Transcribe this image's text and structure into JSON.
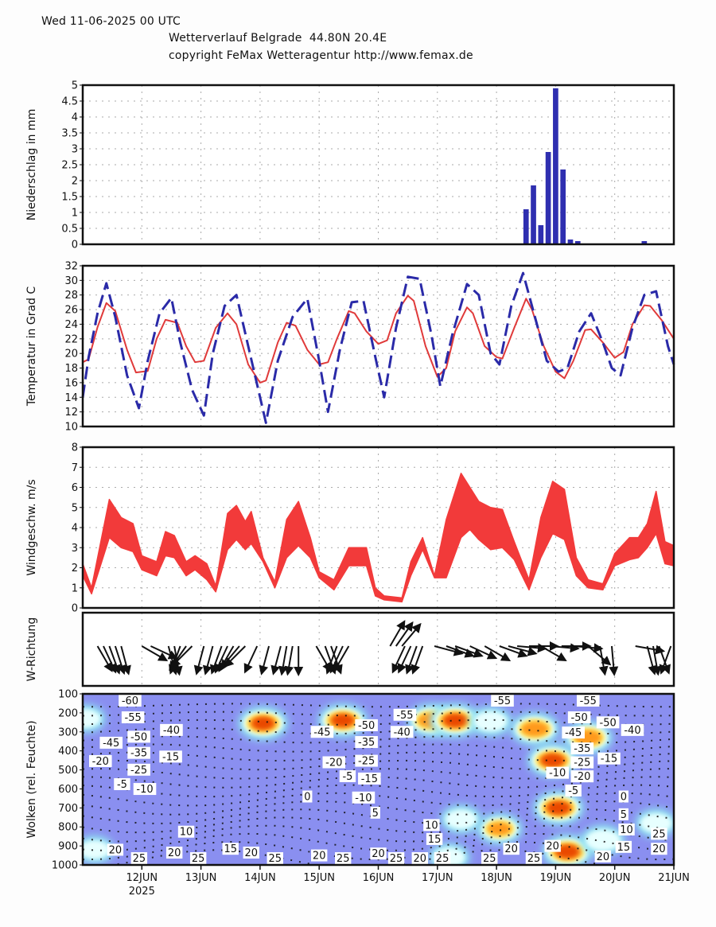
{
  "header": {
    "date_line": "Wed 11-06-2025 00 UTC",
    "title_line": "Wetterverlauf Belgrade  44.80N 20.4E",
    "copyright_line": "copyright FeMax Wetteragentur http://www.femax.de"
  },
  "x_axis": {
    "start_day": 11,
    "end_day": 21,
    "tick_labels": [
      "12JUN",
      "13JUN",
      "14JUN",
      "15JUN",
      "16JUN",
      "17JUN",
      "18JUN",
      "19JUN",
      "20JUN",
      "21JUN"
    ],
    "tick_days": [
      12,
      13,
      14,
      15,
      16,
      17,
      18,
      19,
      20,
      21
    ],
    "year_label": "2025"
  },
  "chart_data": [
    {
      "type": "bar",
      "name": "precipitation",
      "ylabel": "Niederschlag in mm",
      "ylim": [
        0,
        5
      ],
      "yticks": [
        "0",
        "0.5",
        "1",
        "1.5",
        "2",
        "2.5",
        "3",
        "3.5",
        "4",
        "4.5",
        "5"
      ],
      "grid": true,
      "color": "#2f2fb0",
      "x": [
        18.5,
        18.625,
        18.75,
        18.875,
        19.0,
        19.125,
        19.25,
        19.375,
        20.5
      ],
      "values": [
        1.1,
        1.85,
        0.6,
        2.9,
        4.9,
        2.35,
        0.15,
        0.1,
        0.1
      ]
    },
    {
      "type": "line",
      "name": "temperature",
      "ylabel": "Temperatur in Grad C",
      "ylim": [
        10,
        32
      ],
      "yticks": [
        "10",
        "12",
        "14",
        "16",
        "18",
        "20",
        "22",
        "24",
        "26",
        "28",
        "30",
        "32"
      ],
      "grid": true,
      "series": [
        {
          "name": "2m temperature",
          "style": "solid",
          "color": "#e03a3a",
          "x": [
            11.0,
            11.1,
            11.25,
            11.4,
            11.55,
            11.75,
            11.9,
            12.1,
            12.25,
            12.4,
            12.6,
            12.75,
            12.9,
            13.05,
            13.25,
            13.45,
            13.6,
            13.8,
            14.0,
            14.1,
            14.3,
            14.45,
            14.6,
            14.8,
            15.0,
            15.15,
            15.3,
            15.5,
            15.6,
            15.8,
            16.0,
            16.15,
            16.3,
            16.5,
            16.6,
            16.8,
            17.0,
            17.15,
            17.3,
            17.5,
            17.6,
            17.8,
            18.0,
            18.1,
            18.3,
            18.5,
            18.6,
            18.8,
            19.0,
            19.15,
            19.3,
            19.5,
            19.6,
            19.8,
            20.0,
            20.15,
            20.3,
            20.5,
            20.6,
            20.8,
            21.0
          ],
          "values": [
            18.8,
            19.2,
            23.6,
            26.9,
            25.8,
            20.5,
            17.4,
            17.6,
            22.0,
            24.6,
            24.2,
            21.0,
            18.8,
            19.0,
            23.5,
            25.5,
            24.0,
            18.5,
            16.0,
            16.3,
            21.5,
            24.2,
            23.8,
            20.5,
            18.5,
            18.8,
            22.0,
            25.8,
            25.5,
            23.0,
            21.3,
            21.8,
            25.5,
            27.9,
            27.2,
            21.0,
            16.8,
            18.0,
            23.0,
            26.3,
            25.5,
            21.0,
            19.5,
            19.3,
            23.5,
            27.5,
            26.0,
            21.0,
            17.5,
            16.6,
            19.0,
            23.2,
            23.3,
            21.5,
            19.4,
            20.2,
            24.0,
            26.6,
            26.5,
            24.5,
            22.0
          ]
        },
        {
          "name": "dewpoint / max-min spread",
          "style": "dashed",
          "color": "#2a2aa8",
          "x": [
            11.0,
            11.1,
            11.25,
            11.4,
            11.55,
            11.75,
            11.95,
            12.1,
            12.3,
            12.5,
            12.65,
            12.85,
            13.05,
            13.2,
            13.4,
            13.6,
            13.8,
            14.0,
            14.1,
            14.3,
            14.55,
            14.8,
            15.0,
            15.15,
            15.35,
            15.55,
            15.75,
            15.95,
            16.1,
            16.3,
            16.5,
            16.7,
            16.9,
            17.05,
            17.25,
            17.5,
            17.7,
            17.9,
            18.05,
            18.25,
            18.45,
            18.65,
            18.85,
            19.05,
            19.2,
            19.4,
            19.6,
            19.8,
            19.95,
            20.1,
            20.3,
            20.5,
            20.7,
            20.9,
            21.0
          ],
          "values": [
            14.0,
            19.5,
            25.5,
            29.6,
            25.0,
            17.0,
            12.5,
            19.0,
            25.5,
            27.6,
            21.5,
            15.0,
            11.5,
            20.0,
            26.5,
            28.0,
            21.0,
            14.0,
            10.5,
            19.0,
            25.0,
            27.5,
            19.0,
            12.0,
            20.5,
            27.0,
            27.2,
            19.5,
            14.0,
            23.5,
            30.5,
            30.2,
            22.5,
            15.5,
            22.5,
            29.5,
            28.0,
            20.0,
            18.5,
            26.5,
            31.0,
            25.0,
            19.0,
            17.5,
            18.0,
            23.0,
            25.5,
            21.5,
            18.0,
            17.0,
            23.5,
            28.0,
            28.5,
            21.0,
            18.5
          ]
        }
      ]
    },
    {
      "type": "area",
      "name": "wind speed",
      "ylabel": "Windgeschw. m/s",
      "ylim": [
        0,
        8
      ],
      "yticks": [
        "0",
        "1",
        "2",
        "3",
        "4",
        "5",
        "6",
        "7",
        "8"
      ],
      "grid": true,
      "color": "#f23a3a",
      "x": [
        11.0,
        11.15,
        11.45,
        11.65,
        11.85,
        12.0,
        12.25,
        12.4,
        12.55,
        12.75,
        12.9,
        13.1,
        13.25,
        13.45,
        13.6,
        13.75,
        13.85,
        14.05,
        14.25,
        14.45,
        14.65,
        14.85,
        15.0,
        15.25,
        15.5,
        15.8,
        15.95,
        16.1,
        16.4,
        16.55,
        16.75,
        16.95,
        17.15,
        17.4,
        17.55,
        17.7,
        17.9,
        18.1,
        18.3,
        18.55,
        18.75,
        18.95,
        19.15,
        19.35,
        19.55,
        19.8,
        20.0,
        20.25,
        20.4,
        20.55,
        20.7,
        20.85,
        21.0
      ],
      "lower": [
        1.6,
        0.7,
        3.5,
        3.0,
        2.8,
        1.9,
        1.6,
        2.6,
        2.5,
        1.6,
        1.9,
        1.4,
        0.8,
        2.9,
        3.4,
        2.9,
        3.2,
        2.3,
        1.0,
        2.5,
        3.1,
        2.5,
        1.5,
        0.9,
        2.1,
        2.1,
        0.6,
        0.4,
        0.3,
        1.6,
        2.9,
        1.5,
        1.5,
        3.5,
        3.9,
        3.4,
        2.9,
        3.0,
        2.4,
        0.9,
        2.5,
        3.7,
        3.4,
        1.6,
        1.0,
        0.9,
        2.1,
        2.4,
        2.5,
        3.0,
        3.7,
        2.2,
        2.1
      ],
      "upper": [
        2.2,
        1.0,
        5.4,
        4.5,
        4.2,
        2.6,
        2.3,
        3.8,
        3.6,
        2.3,
        2.6,
        2.2,
        1.1,
        4.7,
        5.1,
        4.3,
        4.8,
        2.5,
        1.3,
        4.4,
        5.3,
        3.5,
        1.8,
        1.4,
        3.0,
        3.0,
        1.0,
        0.6,
        0.5,
        2.3,
        3.5,
        1.6,
        4.4,
        6.7,
        6.0,
        5.3,
        5.0,
        4.9,
        3.3,
        1.4,
        4.5,
        6.3,
        5.9,
        2.5,
        1.4,
        1.2,
        2.7,
        3.5,
        3.5,
        4.2,
        5.8,
        3.3,
        3.1
      ]
    },
    {
      "type": "scatter",
      "name": "wind direction",
      "ylabel": "W-Richtung",
      "note": "arrows pointing in wind direction; angle in degrees (0 = up/north, clockwise)",
      "x": [
        11.25,
        11.35,
        11.45,
        11.55,
        11.65,
        12.0,
        12.15,
        12.45,
        12.55,
        12.65,
        12.75,
        12.85,
        13.05,
        13.2,
        13.35,
        13.45,
        13.55,
        13.65,
        13.75,
        13.95,
        14.15,
        14.35,
        14.45,
        14.55,
        14.65,
        14.95,
        15.1,
        15.2,
        15.3,
        15.4,
        15.5,
        16.2,
        16.3,
        16.4,
        16.45,
        16.55,
        16.65,
        16.75,
        16.95,
        17.15,
        17.3,
        17.55,
        17.8,
        18.05,
        18.2,
        18.35,
        18.55,
        18.75,
        18.9,
        19.1,
        19.3,
        19.55,
        19.75,
        19.95,
        20.35,
        20.55,
        20.65,
        20.75,
        20.95
      ],
      "angles": [
        150,
        155,
        160,
        162,
        165,
        120,
        115,
        165,
        170,
        200,
        215,
        225,
        195,
        195,
        200,
        205,
        210,
        220,
        225,
        205,
        195,
        195,
        190,
        190,
        180,
        150,
        160,
        160,
        200,
        205,
        210,
        30,
        35,
        40,
        205,
        205,
        200,
        200,
        105,
        110,
        110,
        115,
        120,
        110,
        105,
        95,
        90,
        120,
        95,
        90,
        95,
        130,
        170,
        175,
        100,
        165,
        170,
        160,
        200
      ]
    },
    {
      "type": "heatmap",
      "name": "clouds / relative humidity with temperature isotherms",
      "ylabel": "Wolken (rel. Feuchte)",
      "ylim": [
        1000,
        100
      ],
      "yticks": [
        "100",
        "200",
        "300",
        "400",
        "500",
        "600",
        "700",
        "800",
        "900",
        "1000"
      ],
      "background_color": "#8a8ff0",
      "colorscale": [
        "#8a8ff0",
        "#8fe3f0",
        "#e7ffff",
        "#ffee66",
        "#ff9a1a",
        "#e94a00"
      ],
      "cloud_regions": [
        {
          "day": 11.05,
          "p": 230,
          "intensity": 0.3
        },
        {
          "day": 11.2,
          "p": 920,
          "intensity": 0.3
        },
        {
          "day": 14.05,
          "p": 255,
          "intensity": 0.95
        },
        {
          "day": 15.4,
          "p": 240,
          "intensity": 0.95
        },
        {
          "day": 16.9,
          "p": 240,
          "intensity": 0.9
        },
        {
          "day": 17.3,
          "p": 240,
          "intensity": 1.0
        },
        {
          "day": 17.9,
          "p": 245,
          "intensity": 0.5
        },
        {
          "day": 18.65,
          "p": 285,
          "intensity": 0.9
        },
        {
          "day": 18.95,
          "p": 450,
          "intensity": 1.0
        },
        {
          "day": 19.05,
          "p": 700,
          "intensity": 1.0
        },
        {
          "day": 19.2,
          "p": 930,
          "intensity": 1.0
        },
        {
          "day": 19.55,
          "p": 330,
          "intensity": 0.9
        },
        {
          "day": 18.05,
          "p": 810,
          "intensity": 0.7
        },
        {
          "day": 17.4,
          "p": 760,
          "intensity": 0.4
        },
        {
          "day": 17.2,
          "p": 960,
          "intensity": 0.4
        },
        {
          "day": 19.8,
          "p": 870,
          "intensity": 0.6
        },
        {
          "day": 20.7,
          "p": 780,
          "intensity": 0.4
        }
      ],
      "isotherm_labels": [
        {
          "text": "-60",
          "day": 11.8,
          "p": 110
        },
        {
          "text": "-55",
          "day": 11.85,
          "p": 190
        },
        {
          "text": "-50",
          "day": 11.95,
          "p": 225
        },
        {
          "text": "-45",
          "day": 11.75,
          "p": 290
        },
        {
          "text": "-40",
          "day": 12.5,
          "p": 290
        },
        {
          "text": "-35",
          "day": 11.95,
          "p": 310
        },
        {
          "text": "-25",
          "day": 11.95,
          "p": 365
        },
        {
          "text": "-20",
          "day": 11.3,
          "p": 420
        },
        {
          "text": "-15",
          "day": 11.95,
          "p": 430
        },
        {
          "text": "-10",
          "day": 12.05,
          "p": 500
        },
        {
          "text": "-5",
          "day": 11.8,
          "p": 575
        },
        {
          "text": "10",
          "day": 12.75,
          "p": 825
        },
        {
          "text": "15",
          "day": 13.5,
          "p": 915
        },
        {
          "text": "20",
          "day": 11.55,
          "p": 920
        },
        {
          "text": "25",
          "day": 11.55,
          "p": 975
        },
        {
          "text": "20",
          "day": 12.55,
          "p": 935
        },
        {
          "text": "25",
          "day": 12.55,
          "p": 990
        },
        {
          "text": "20",
          "day": 13.85,
          "p": 935
        },
        {
          "text": "25",
          "day": 13.85,
          "p": 985
        },
        {
          "text": "-45",
          "day": 15.05,
          "p": 300
        },
        {
          "text": "-50",
          "day": 15.8,
          "p": 265
        },
        {
          "text": "-35",
          "day": 15.8,
          "p": 320
        },
        {
          "text": "-25",
          "day": 15.8,
          "p": 385
        },
        {
          "text": "-20",
          "day": 15.25,
          "p": 460
        },
        {
          "text": "-15",
          "day": 15.85,
          "p": 445
        },
        {
          "text": "-10",
          "day": 15.75,
          "p": 545
        },
        {
          "text": "-5",
          "day": 15.75,
          "p": 600
        },
        {
          "text": "0",
          "day": 14.8,
          "p": 640
        },
        {
          "text": "5",
          "day": 15.95,
          "p": 725
        },
        {
          "text": "-55",
          "day": 16.45,
          "p": 210
        },
        {
          "text": "-40",
          "day": 16.4,
          "p": 300
        },
        {
          "text": "20",
          "day": 15.0,
          "p": 950
        },
        {
          "text": "25",
          "day": 15.0,
          "p": 995
        },
        {
          "text": "20",
          "day": 16.0,
          "p": 940
        },
        {
          "text": "25",
          "day": 15.9,
          "p": 990
        },
        {
          "text": "20",
          "day": 16.3,
          "p": 1000
        },
        {
          "text": "10",
          "day": 16.9,
          "p": 790
        },
        {
          "text": "15",
          "day": 16.95,
          "p": 830
        },
        {
          "text": "25",
          "day": 16.95,
          "p": 985
        },
        {
          "text": "-55",
          "day": 18.1,
          "p": 105
        },
        {
          "text": "-55",
          "day": 19.55,
          "p": 105
        },
        {
          "text": "-50",
          "day": 19.4,
          "p": 190
        },
        {
          "text": "-45",
          "day": 19.3,
          "p": 270
        },
        {
          "text": "-50",
          "day": 19.75,
          "p": 250
        },
        {
          "text": "-40",
          "day": 20.3,
          "p": 290
        },
        {
          "text": "-35",
          "day": 19.45,
          "p": 320
        },
        {
          "text": "-25",
          "day": 19.45,
          "p": 360
        },
        {
          "text": "-20",
          "day": 19.45,
          "p": 400
        },
        {
          "text": "-15",
          "day": 19.5,
          "p": 440
        },
        {
          "text": "-10",
          "day": 19.3,
          "p": 515
        },
        {
          "text": "-5",
          "day": 19.3,
          "p": 575
        },
        {
          "text": "0",
          "day": 20.15,
          "p": 640
        },
        {
          "text": "5",
          "day": 20.15,
          "p": 700
        },
        {
          "text": "10",
          "day": 20.2,
          "p": 780
        },
        {
          "text": "15",
          "day": 20.15,
          "p": 905
        },
        {
          "text": "20",
          "day": 18.25,
          "p": 915
        },
        {
          "text": "25",
          "day": 18.15,
          "p": 965
        },
        {
          "text": "20",
          "day": 18.95,
          "p": 900
        },
        {
          "text": "25",
          "day": 18.9,
          "p": 965
        },
        {
          "text": "20",
          "day": 19.8,
          "p": 955
        },
        {
          "text": "20",
          "day": 20.75,
          "p": 915
        },
        {
          "text": "25",
          "day": 20.75,
          "p": 970
        }
      ]
    }
  ]
}
